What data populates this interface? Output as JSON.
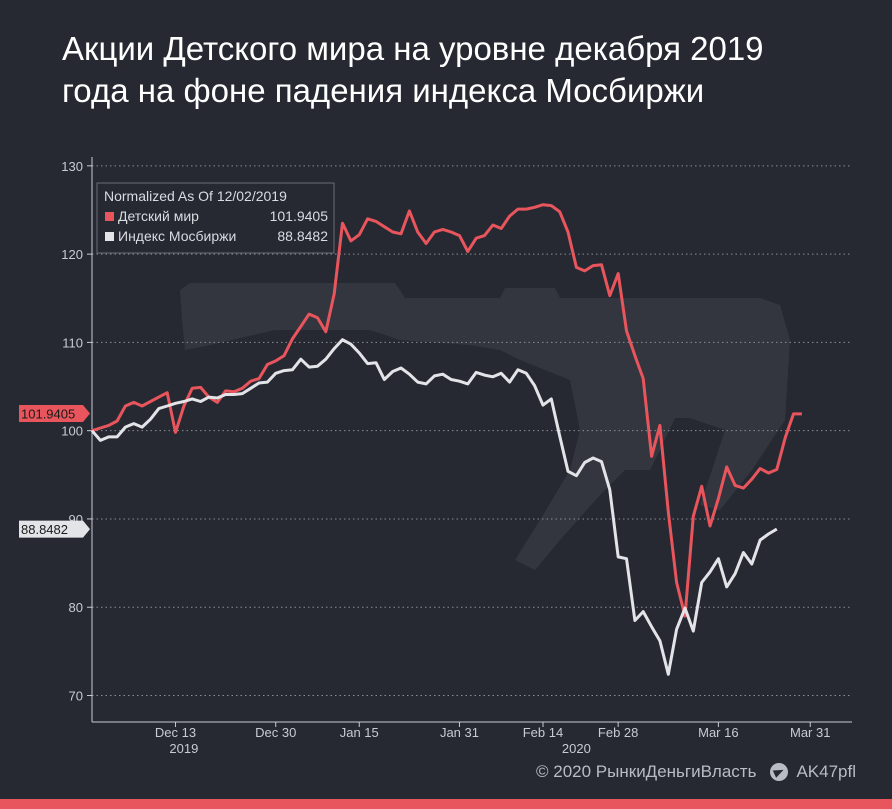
{
  "title": "Акции Детского мира на уровне декабря 2019 года на фоне падения индекса Мосбиржи",
  "footer": {
    "copyright": "© 2020 РынкиДеньгиВласть",
    "channel": "AK47pfl",
    "channel_icon": "telegram-icon"
  },
  "colors": {
    "background": "#262932",
    "series_red": "#e8555c",
    "series_white": "#e2e4e8",
    "grid": "#8a8d96",
    "watermark": "#33363f"
  },
  "chart_data": {
    "type": "line",
    "title": "",
    "legend": {
      "header": "Normalized As Of 12/02/2019",
      "placement": "top-left"
    },
    "ylim": [
      67,
      131
    ],
    "yticks": [
      70,
      80,
      90,
      100,
      110,
      120,
      130
    ],
    "xlabels": [
      {
        "label": "Dec 13",
        "index": 10
      },
      {
        "label": "Dec 30",
        "index": 22
      },
      {
        "label": "Jan 15",
        "index": 32
      },
      {
        "label": "Jan 31",
        "index": 44
      },
      {
        "label": "Feb 14",
        "index": 54
      },
      {
        "label": "Feb 28",
        "index": 63
      },
      {
        "label": "Mar 16",
        "index": 75
      },
      {
        "label": "Mar 31",
        "index": 86
      }
    ],
    "year_labels": [
      {
        "label": "2019",
        "index": 11
      },
      {
        "label": "2020",
        "index": 58
      }
    ],
    "x_count": 92,
    "grid": true,
    "series": [
      {
        "name": "Детский мир",
        "last_value": "101.9405",
        "color": "#e8555c",
        "values": [
          100,
          100.3,
          100.6,
          101.1,
          102.8,
          103.2,
          102.8,
          103.3,
          103.8,
          104.3,
          99.8,
          102.8,
          104.8,
          104.9,
          103.8,
          103.2,
          104.5,
          104.4,
          104.8,
          105.6,
          105.9,
          107.5,
          107.9,
          108.5,
          110.4,
          111.8,
          113.2,
          112.8,
          111.2,
          115.5,
          123.5,
          121.5,
          122.2,
          124,
          123.7,
          123.1,
          122.5,
          122.3,
          124.9,
          122.5,
          121.2,
          122.5,
          122.8,
          122.5,
          122.1,
          120.3,
          121.8,
          122.1,
          123.3,
          122.9,
          124.3,
          125.1,
          125.1,
          125.3,
          125.6,
          125.5,
          124.8,
          122.5,
          118.5,
          118.1,
          118.7,
          118.8,
          115.3,
          117.8,
          111.3,
          108.5,
          105.9,
          97.1,
          100.6,
          90.8,
          82.8,
          79,
          90.3,
          93.7,
          89.2,
          92.3,
          95.9,
          93.8,
          93.5,
          94.5,
          95.7,
          95.2,
          95.6,
          99.2,
          101.9,
          101.9
        ]
      },
      {
        "name": "Индекс Мосбиржи",
        "last_value": "88.8482",
        "color": "#e2e4e8",
        "values": [
          100,
          98.9,
          99.3,
          99.3,
          100.4,
          100.8,
          100.4,
          101.3,
          102.5,
          102.8,
          103.1,
          103.3,
          103.6,
          103.3,
          103.8,
          103.7,
          104.1,
          104.1,
          104.2,
          104.8,
          105.4,
          105.5,
          106.5,
          106.8,
          106.9,
          108.1,
          107.2,
          107.3,
          108.1,
          109.3,
          110.3,
          109.8,
          108.8,
          107.6,
          107.7,
          105.8,
          106.7,
          107.1,
          106.4,
          105.5,
          105.3,
          106.2,
          106.4,
          105.8,
          105.6,
          105.3,
          106.6,
          106.3,
          106.1,
          106.5,
          105.5,
          106.9,
          106.5,
          105.1,
          102.9,
          103.6,
          99.4,
          95.4,
          94.9,
          96.4,
          96.9,
          96.5,
          93.3,
          85.7,
          85.5,
          78.5,
          79.5,
          77.8,
          76.2,
          72.4,
          77.5,
          79.9,
          77.3,
          82.8,
          84,
          85.5,
          82.3,
          83.8,
          86.2,
          84.9,
          87.6,
          88.3,
          88.85
        ]
      }
    ],
    "y_tags": [
      {
        "label": "101.9405",
        "value": 101.9405,
        "color": "#e8555c",
        "text_color": "#1a1a1a"
      },
      {
        "label": "88.8482",
        "value": 88.8482,
        "color": "#e2e4e8",
        "text_color": "#1a1a1a"
      }
    ]
  }
}
